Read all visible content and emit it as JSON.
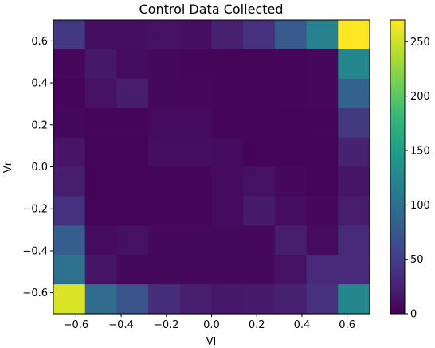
{
  "chart_data": {
    "type": "heatmap",
    "title": "Control Data Collected",
    "xlabel": "Vl",
    "ylabel": "Vr",
    "xlim": [
      -0.7,
      0.7
    ],
    "ylim": [
      -0.7,
      0.7
    ],
    "x_ticks": [
      -0.6,
      -0.4,
      -0.2,
      0.0,
      0.2,
      0.4,
      0.6
    ],
    "y_ticks": [
      -0.6,
      -0.4,
      -0.2,
      0.0,
      0.2,
      0.4,
      0.6
    ],
    "x_tick_labels": [
      "−0.6",
      "−0.4",
      "−0.2",
      "0.0",
      "0.2",
      "0.4",
      "0.6"
    ],
    "y_tick_labels": [
      "−0.6",
      "−0.4",
      "−0.2",
      "0.0",
      "0.2",
      "0.4",
      "0.6"
    ],
    "colorbar": {
      "vmin": 0,
      "vmax": 270,
      "ticks": [
        0,
        50,
        100,
        150,
        200,
        250
      ],
      "tick_labels": [
        "0",
        "50",
        "100",
        "150",
        "200",
        "250"
      ],
      "colormap": "viridis"
    },
    "rows_top_to_bottom": [
      [
        45,
        10,
        10,
        12,
        10,
        25,
        38,
        75,
        120,
        270
      ],
      [
        5,
        18,
        8,
        6,
        4,
        4,
        3,
        4,
        5,
        125
      ],
      [
        3,
        12,
        22,
        6,
        5,
        4,
        3,
        4,
        5,
        85
      ],
      [
        6,
        4,
        4,
        8,
        8,
        4,
        3,
        3,
        4,
        45
      ],
      [
        15,
        3,
        3,
        10,
        10,
        8,
        3,
        3,
        3,
        25
      ],
      [
        22,
        3,
        3,
        4,
        4,
        8,
        12,
        5,
        3,
        15
      ],
      [
        38,
        3,
        3,
        4,
        4,
        8,
        20,
        10,
        5,
        22
      ],
      [
        80,
        8,
        12,
        6,
        6,
        6,
        6,
        22,
        8,
        32
      ],
      [
        100,
        15,
        6,
        6,
        6,
        6,
        6,
        12,
        32,
        32
      ],
      [
        255,
        95,
        70,
        35,
        22,
        18,
        20,
        25,
        38,
        125
      ]
    ]
  }
}
